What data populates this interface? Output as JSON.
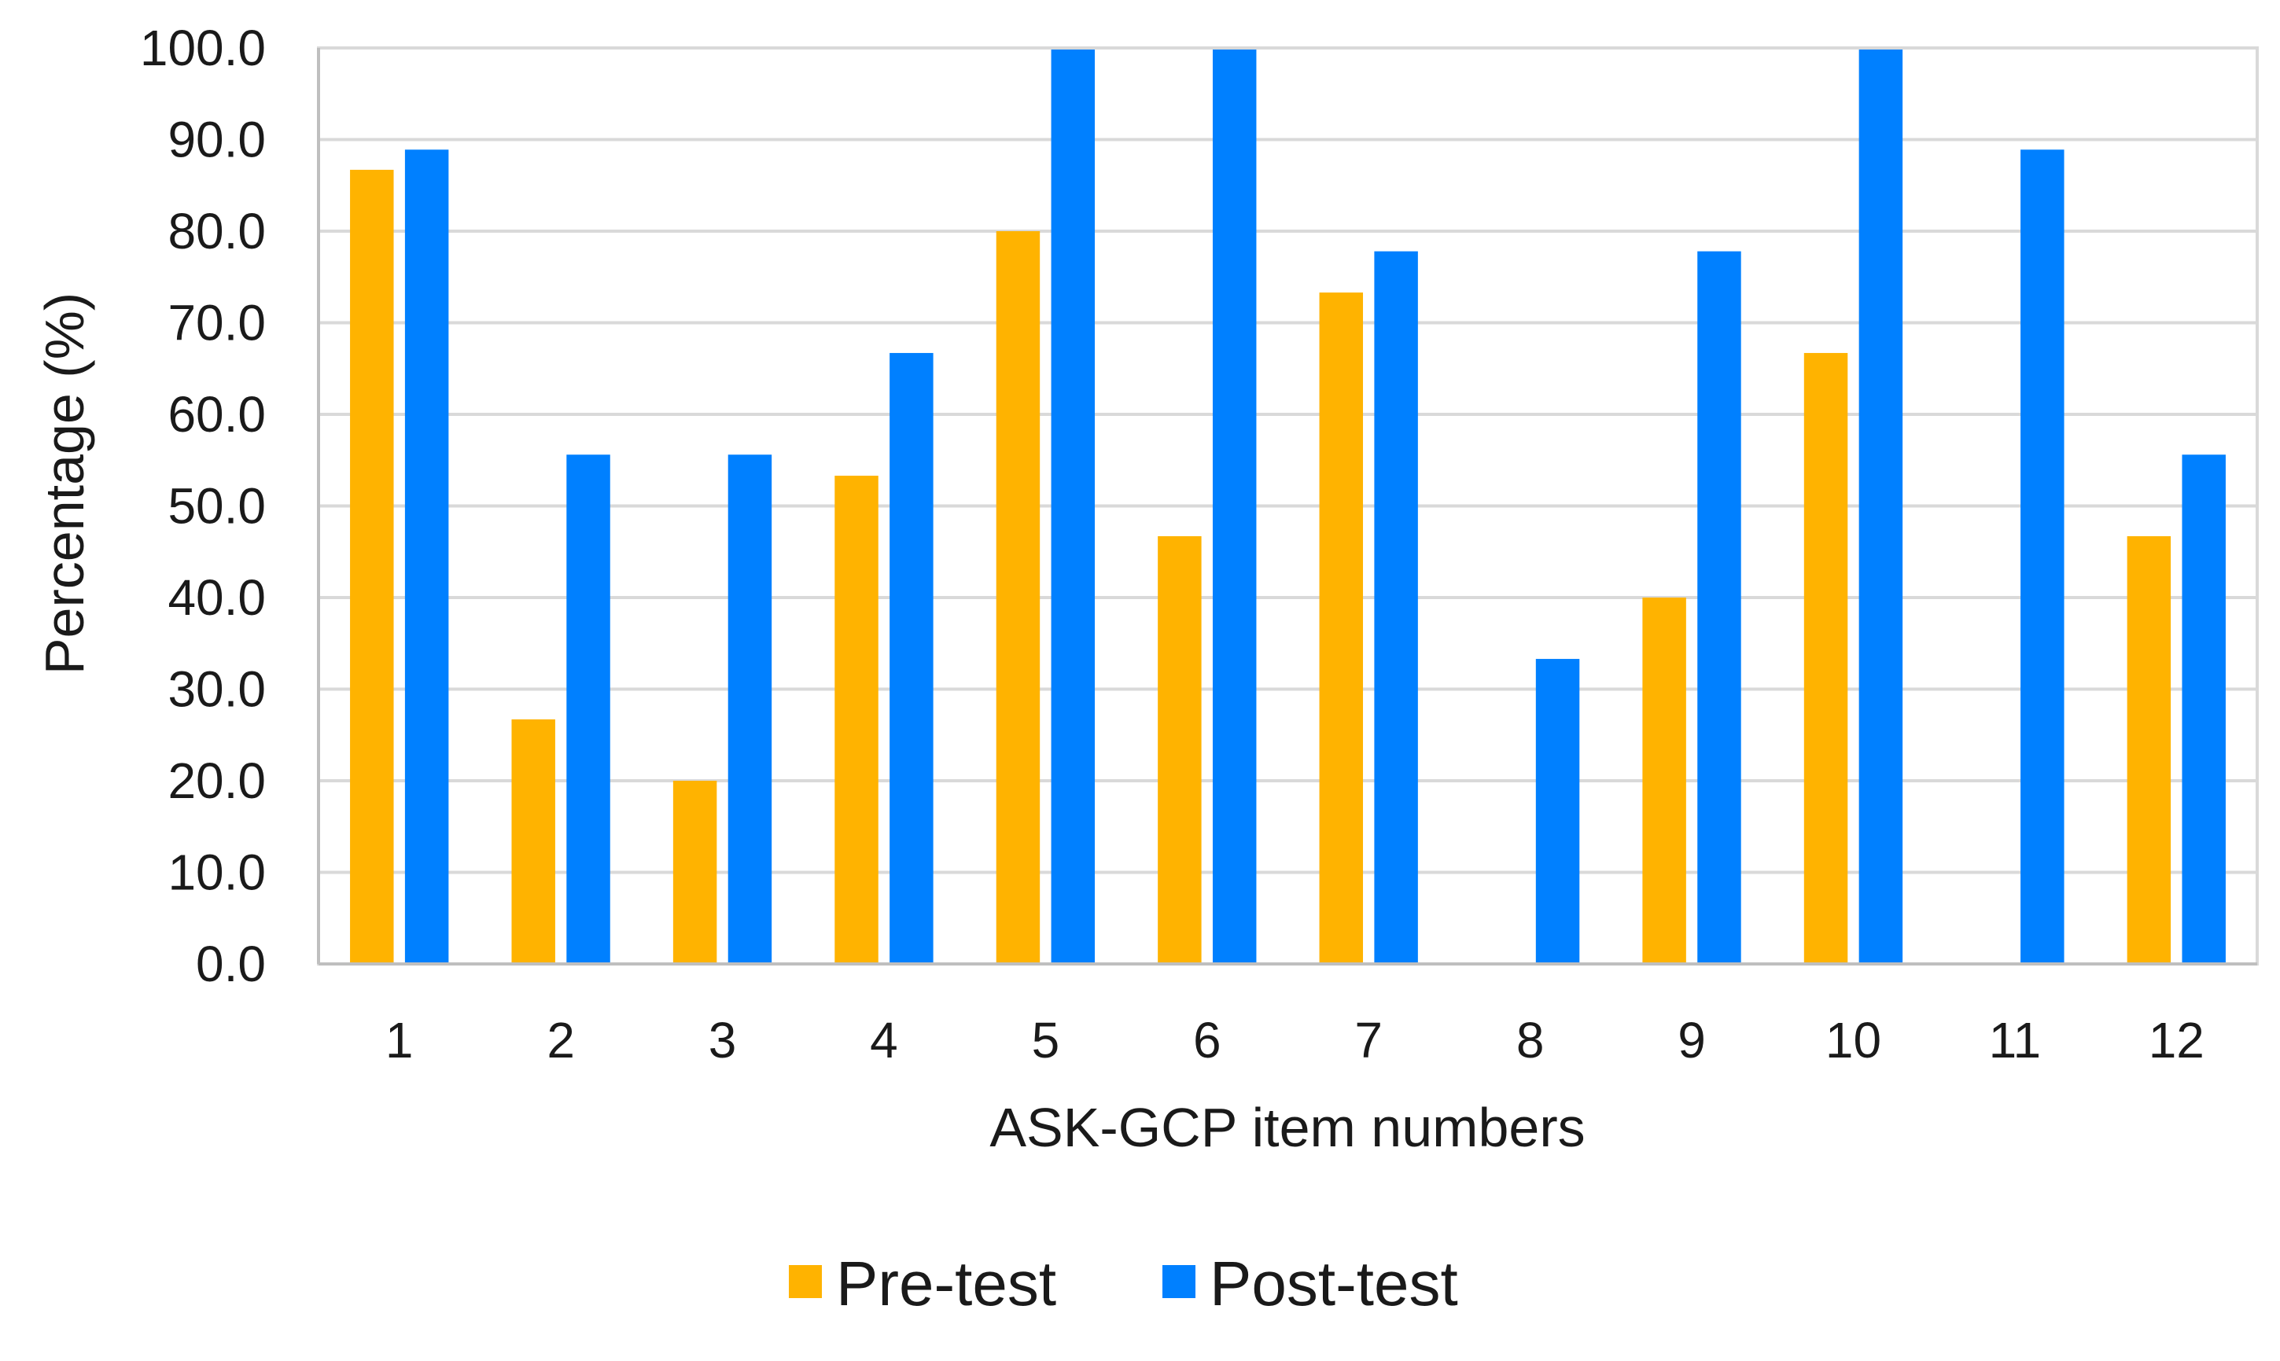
{
  "chart_data": {
    "type": "bar",
    "title": "",
    "xlabel": "ASK-GCP item numbers",
    "ylabel": "Percentage (%)",
    "ylim": [
      0,
      100
    ],
    "y_ticks": [
      "0.0",
      "10.0",
      "20.0",
      "30.0",
      "40.0",
      "50.0",
      "60.0",
      "70.0",
      "80.0",
      "90.0",
      "100.0"
    ],
    "y_tick_values": [
      0,
      10,
      20,
      30,
      40,
      50,
      60,
      70,
      80,
      90,
      100
    ],
    "categories": [
      "1",
      "2",
      "3",
      "4",
      "5",
      "6",
      "7",
      "8",
      "9",
      "10",
      "11",
      "12"
    ],
    "series": [
      {
        "name": "Pre-test",
        "color": "#FFB300",
        "values": [
          86.7,
          26.7,
          20.0,
          53.3,
          80.0,
          46.7,
          73.3,
          0.0,
          40.0,
          66.7,
          0.0,
          46.7
        ]
      },
      {
        "name": "Post-test",
        "color": "#0080FF",
        "values": [
          88.9,
          55.6,
          55.6,
          66.7,
          100.0,
          100.0,
          77.8,
          33.3,
          77.8,
          100.0,
          88.9,
          55.6
        ]
      }
    ],
    "grid": true,
    "legend_position": "bottom-center"
  }
}
